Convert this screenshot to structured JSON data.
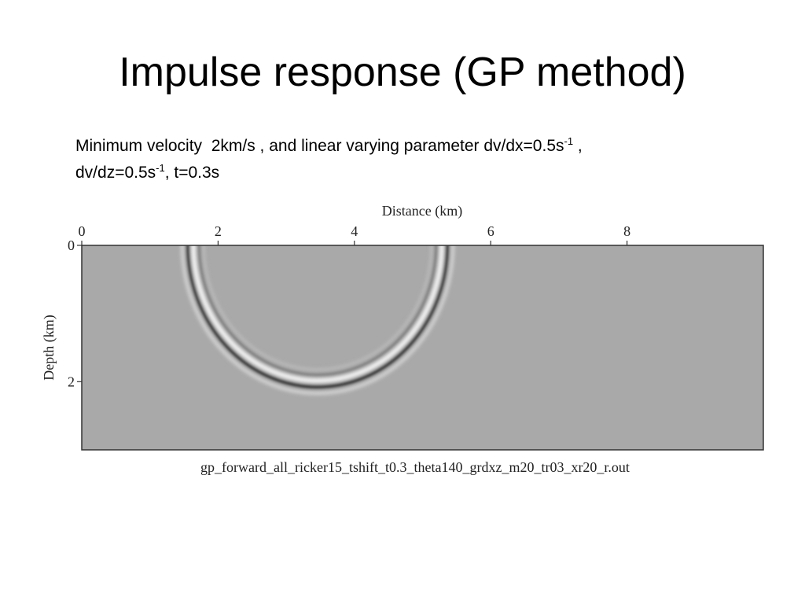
{
  "slide": {
    "title": "Impulse response (GP method)",
    "text": {
      "line1": [
        "Minimum velocity  2km/s , and linear varying parameter dv/dx=0.5s",
        "-1",
        " ,"
      ],
      "line2": [
        "dv/dz=0.5s",
        "-1",
        ", t=0.3s"
      ]
    },
    "figure": {
      "x_label": "Distance (km)",
      "y_label": "Depth (km)",
      "xlim": [
        0,
        10
      ],
      "xticks": [
        0,
        2,
        4,
        6,
        8
      ],
      "ylim": [
        0,
        3
      ],
      "yticks": [
        0,
        2
      ],
      "caption": "gp_forward_all_ricker15_tshift_t0.3_theta140_grdxz_m20_tr03_xr20_r.out"
    }
  }
}
